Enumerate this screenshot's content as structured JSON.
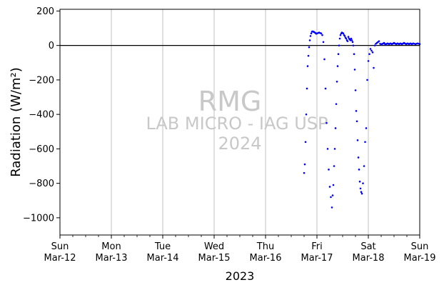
{
  "chart_data": {
    "type": "scatter",
    "ylabel": "Radiation (W/m²)",
    "xlabel": "2023",
    "ylim": [
      -1100,
      210
    ],
    "yticks": [
      200,
      0,
      -200,
      -400,
      -600,
      -800,
      -1000
    ],
    "xlim": [
      "2023-03-12",
      "2023-03-19"
    ],
    "xticks": [
      {
        "day": "Sun",
        "date": "Mar-12"
      },
      {
        "day": "Mon",
        "date": "Mar-13"
      },
      {
        "day": "Tue",
        "date": "Mar-14"
      },
      {
        "day": "Wed",
        "date": "Mar-15"
      },
      {
        "day": "Thu",
        "date": "Mar-16"
      },
      {
        "day": "Fri",
        "date": "Mar-17"
      },
      {
        "day": "Sat",
        "date": "Mar-18"
      },
      {
        "day": "Sun",
        "date": "Mar-19"
      }
    ],
    "grid": "vertical",
    "reference_line": 0,
    "series_color": "#0000ff",
    "watermark": [
      "RMG",
      "LAB MICRO - IAG USP",
      "2024"
    ],
    "series": [
      {
        "x": [
          "2023-03-16 18:00",
          "2023-03-16 18:20",
          "2023-03-16 18:40",
          "2023-03-16 19:00",
          "2023-03-16 19:20",
          "2023-03-16 19:40",
          "2023-03-16 20:00",
          "2023-03-16 20:20",
          "2023-03-16 20:40",
          "2023-03-16 21:00",
          "2023-03-16 21:20",
          "2023-03-16 21:40",
          "2023-03-16 22:00",
          "2023-03-16 22:20",
          "2023-03-16 22:40",
          "2023-03-16 23:00",
          "2023-03-16 23:20",
          "2023-03-16 23:40",
          "2023-03-17 00:00",
          "2023-03-17 00:30",
          "2023-03-17 01:00",
          "2023-03-17 01:30",
          "2023-03-17 02:00",
          "2023-03-17 02:30",
          "2023-03-17 03:00",
          "2023-03-17 03:30",
          "2023-03-17 04:00",
          "2023-03-17 04:30",
          "2023-03-17 05:00",
          "2023-03-17 05:30",
          "2023-03-17 06:00",
          "2023-03-17 06:30",
          "2023-03-17 07:00",
          "2023-03-17 07:20",
          "2023-03-17 07:40",
          "2023-03-17 08:00",
          "2023-03-17 08:20",
          "2023-03-17 08:40",
          "2023-03-17 09:00",
          "2023-03-17 09:20",
          "2023-03-17 09:40",
          "2023-03-17 10:00",
          "2023-03-17 10:20",
          "2023-03-17 10:40",
          "2023-03-17 11:00",
          "2023-03-17 11:20",
          "2023-03-17 11:40",
          "2023-03-17 12:00",
          "2023-03-17 12:20",
          "2023-03-17 12:40",
          "2023-03-17 13:00",
          "2023-03-17 13:20",
          "2023-03-17 13:40",
          "2023-03-17 14:00",
          "2023-03-17 14:20",
          "2023-03-17 14:40",
          "2023-03-17 15:00",
          "2023-03-17 15:20",
          "2023-03-17 15:40",
          "2023-03-17 16:00",
          "2023-03-17 16:20",
          "2023-03-17 16:40",
          "2023-03-17 17:00",
          "2023-03-17 17:20",
          "2023-03-17 17:40",
          "2023-03-17 18:00",
          "2023-03-17 18:20",
          "2023-03-17 18:40",
          "2023-03-17 19:00",
          "2023-03-17 19:20",
          "2023-03-17 19:40",
          "2023-03-17 20:00",
          "2023-03-17 20:20",
          "2023-03-17 20:40",
          "2023-03-17 21:00",
          "2023-03-17 21:30",
          "2023-03-17 22:00",
          "2023-03-17 22:30",
          "2023-03-17 23:00",
          "2023-03-17 23:30",
          "2023-03-18 00:00",
          "2023-03-18 00:30",
          "2023-03-18 01:00",
          "2023-03-18 01:30",
          "2023-03-18 02:00",
          "2023-03-18 02:30",
          "2023-03-18 03:00",
          "2023-03-18 03:30",
          "2023-03-18 04:00",
          "2023-03-18 04:30",
          "2023-03-18 05:00",
          "2023-03-18 05:30",
          "2023-03-18 06:00",
          "2023-03-18 06:20",
          "2023-03-18 06:40",
          "2023-03-18 07:00",
          "2023-03-18 07:20",
          "2023-03-18 07:40",
          "2023-03-18 08:00",
          "2023-03-18 08:20",
          "2023-03-18 08:40",
          "2023-03-18 09:00",
          "2023-03-18 09:20",
          "2023-03-18 09:40",
          "2023-03-18 10:00",
          "2023-03-18 10:20",
          "2023-03-18 10:40",
          "2023-03-18 11:00",
          "2023-03-18 11:20",
          "2023-03-18 11:40",
          "2023-03-18 12:00",
          "2023-03-18 12:20",
          "2023-03-18 12:40",
          "2023-03-18 13:00",
          "2023-03-18 13:20",
          "2023-03-18 13:40",
          "2023-03-18 14:00",
          "2023-03-18 14:20",
          "2023-03-18 14:40",
          "2023-03-18 15:00",
          "2023-03-18 15:20",
          "2023-03-18 15:40",
          "2023-03-18 16:00",
          "2023-03-18 16:20",
          "2023-03-18 16:40",
          "2023-03-18 17:00",
          "2023-03-18 17:20",
          "2023-03-18 17:40",
          "2023-03-18 18:00",
          "2023-03-18 18:20",
          "2023-03-18 18:40",
          "2023-03-18 19:00",
          "2023-03-18 19:20",
          "2023-03-18 19:40",
          "2023-03-18 20:00",
          "2023-03-18 20:20",
          "2023-03-18 20:40",
          "2023-03-18 21:00",
          "2023-03-18 21:30",
          "2023-03-18 22:00",
          "2023-03-18 22:30",
          "2023-03-18 23:00",
          "2023-03-18 23:30",
          "2023-03-19 00:00"
        ],
        "y": [
          -740,
          -690,
          -560,
          -400,
          -250,
          -120,
          -60,
          -10,
          30,
          55,
          70,
          80,
          82,
          80,
          78,
          75,
          72,
          68,
          70,
          72,
          75,
          72,
          70,
          60,
          20,
          -80,
          -250,
          -450,
          -600,
          -720,
          -820,
          -880,
          -940,
          -870,
          -810,
          -700,
          -600,
          -480,
          -340,
          -210,
          -120,
          -50,
          0,
          40,
          60,
          70,
          75,
          72,
          70,
          60,
          55,
          45,
          40,
          30,
          25,
          50,
          40,
          35,
          30,
          40,
          30,
          20,
          0,
          -50,
          -140,
          -260,
          -380,
          -440,
          -550,
          -650,
          -720,
          -790,
          -830,
          -850,
          -860,
          -800,
          -700,
          -560,
          -480,
          -200,
          -90,
          -50,
          -20,
          -30,
          -40,
          -130,
          0,
          10,
          15,
          20,
          25,
          10,
          5,
          8,
          10,
          12,
          15,
          10,
          5,
          8,
          10,
          12,
          10,
          8,
          10,
          12,
          10,
          8,
          10,
          12,
          15,
          12,
          10,
          8,
          10,
          12,
          10,
          8,
          10,
          12,
          10,
          8,
          10,
          12,
          15,
          12,
          10,
          8,
          10,
          12,
          10,
          8,
          10,
          12,
          10,
          8,
          10,
          12,
          10,
          8,
          10,
          12,
          10,
          8
        ]
      }
    ]
  }
}
